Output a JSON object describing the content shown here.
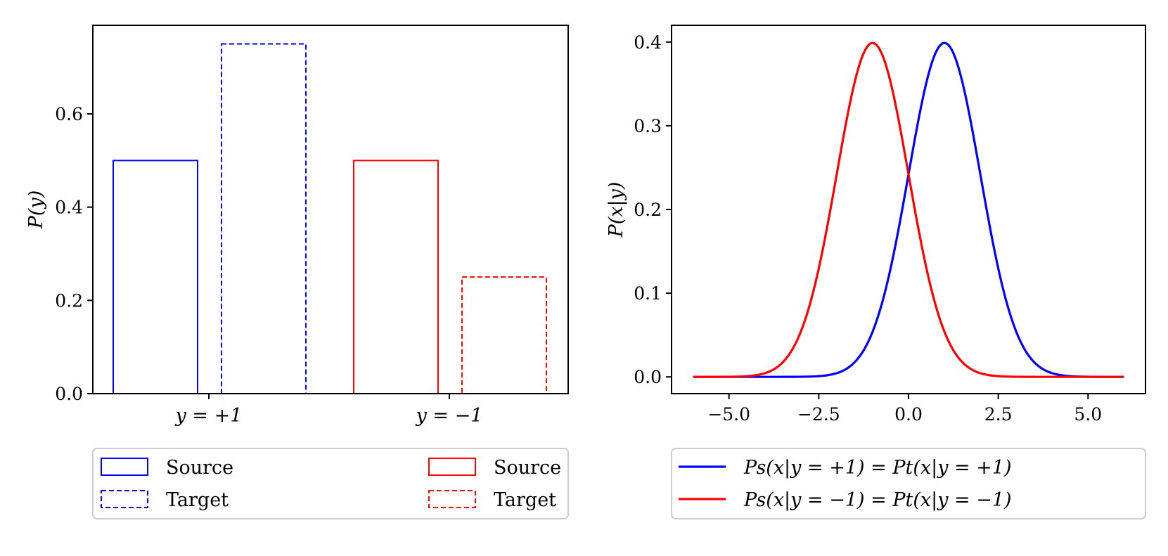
{
  "colors": {
    "blue": "#0000ff",
    "red": "#ff0000",
    "axis": "#000000",
    "legend_border": "#cccccc"
  },
  "chart_data": [
    {
      "type": "bar",
      "ylabel": "P(y)",
      "categories": [
        "y = +1",
        "y = −1"
      ],
      "ylim": [
        0,
        0.79
      ],
      "yticks": [
        0.0,
        0.2,
        0.4,
        0.6
      ],
      "ytick_labels": [
        "0.0",
        "0.2",
        "0.4",
        "0.6"
      ],
      "series": [
        {
          "name": "Source",
          "category": "y = +1",
          "value": 0.5,
          "color": "#0000ff",
          "style": "solid"
        },
        {
          "name": "Target",
          "category": "y = +1",
          "value": 0.75,
          "color": "#0000ff",
          "style": "dashed"
        },
        {
          "name": "Source",
          "category": "y = −1",
          "value": 0.5,
          "color": "#ff0000",
          "style": "solid"
        },
        {
          "name": "Target",
          "category": "y = −1",
          "value": 0.25,
          "color": "#ff0000",
          "style": "dashed"
        }
      ],
      "legend": [
        {
          "label": "Source",
          "color": "#0000ff",
          "style": "solid"
        },
        {
          "label": "Target",
          "color": "#0000ff",
          "style": "dashed"
        },
        {
          "label": "Source",
          "color": "#ff0000",
          "style": "solid"
        },
        {
          "label": "Target",
          "color": "#ff0000",
          "style": "dashed"
        }
      ],
      "legend_placement": "below"
    },
    {
      "type": "line",
      "ylabel": "P(x|y)",
      "xlim": [
        -6.6,
        6.6
      ],
      "ylim": [
        -0.02,
        0.42
      ],
      "xticks": [
        -5.0,
        -2.5,
        0.0,
        2.5,
        5.0
      ],
      "xtick_labels": [
        "−5.0",
        "−2.5",
        "0.0",
        "2.5",
        "5.0"
      ],
      "yticks": [
        0.0,
        0.1,
        0.2,
        0.3,
        0.4
      ],
      "ytick_labels": [
        "0.0",
        "0.1",
        "0.2",
        "0.3",
        "0.4"
      ],
      "x_range": [
        -6,
        6
      ],
      "series": [
        {
          "name": "Ps(x|y = +1) = Pt(x|y = +1)",
          "distribution": "normal",
          "mean": 1,
          "std": 1,
          "color": "#0000ff"
        },
        {
          "name": "Ps(x|y = −1) = Pt(x|y = −1)",
          "distribution": "normal",
          "mean": -1,
          "std": 1,
          "color": "#ff0000"
        }
      ],
      "legend": [
        {
          "label": "Ps(x|y = +1) = Pt(x|y = +1)",
          "color": "#0000ff"
        },
        {
          "label": "Ps(x|y = −1) = Pt(x|y = −1)",
          "color": "#ff0000"
        }
      ],
      "legend_placement": "below"
    }
  ]
}
